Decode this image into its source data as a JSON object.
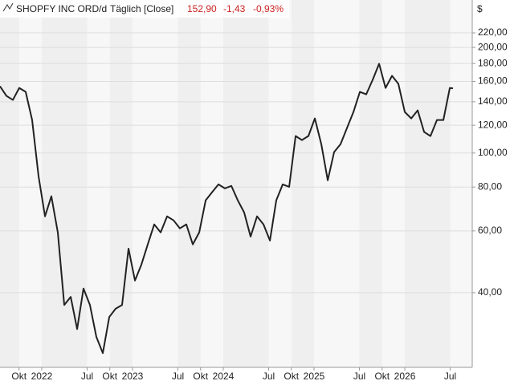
{
  "chart_data": {
    "type": "line",
    "title": "SHOPFY INC ORD/d",
    "subtitle": "Täglich [Close]",
    "last": "152,90",
    "change": "-1,43",
    "change_percent": "-0,93%",
    "y_label": "$",
    "log_y": true,
    "x": [
      2021.54,
      2021.611,
      2021.682,
      2021.752,
      2021.823,
      2021.894,
      2021.965,
      2022.036,
      2022.106,
      2022.177,
      2022.248,
      2022.319,
      2022.39,
      2022.46,
      2022.531,
      2022.602,
      2022.673,
      2022.744,
      2022.814,
      2022.885,
      2022.956,
      2023.027,
      2023.098,
      2023.168,
      2023.239,
      2023.31,
      2023.381,
      2023.452,
      2023.522,
      2023.593,
      2023.664,
      2023.735,
      2023.806,
      2023.876,
      2023.947,
      2024.018,
      2024.089,
      2024.16,
      2024.23,
      2024.301,
      2024.372,
      2024.443,
      2024.514,
      2024.584,
      2024.655,
      2024.726,
      2024.797,
      2024.867,
      2024.938,
      2025.009,
      2025.08,
      2025.151,
      2025.221,
      2025.292,
      2025.363,
      2025.434,
      2025.505,
      2025.575,
      2025.646,
      2025.717,
      2025.788,
      2025.859,
      2025.929,
      2026.0,
      2026.071,
      2026.142,
      2026.213,
      2026.283,
      2026.354,
      2026.425,
      2026.496,
      2026.531
    ],
    "series": [
      {
        "name": "SHOPFY INC ORD",
        "color": "#222222",
        "values": [
          155.0,
          145.5,
          141.7,
          153.3,
          149.4,
          124.2,
          85.8,
          66.0,
          75.3,
          59.4,
          36.9,
          38.9,
          31.5,
          41.1,
          36.9,
          29.9,
          26.9,
          34.1,
          36.0,
          36.9,
          53.4,
          43.3,
          48.1,
          54.9,
          62.6,
          59.4,
          66.0,
          64.3,
          61.0,
          62.6,
          54.9,
          59.4,
          73.3,
          77.3,
          81.4,
          79.3,
          80.6,
          73.3,
          67.7,
          57.8,
          66.0,
          62.6,
          56.3,
          73.3,
          81.4,
          80.1,
          111.8,
          108.9,
          111.8,
          125.5,
          106.0,
          83.6,
          100.6,
          106.0,
          117.8,
          130.9,
          149.4,
          147.0,
          161.7,
          179.6,
          153.3,
          166.0,
          157.5,
          130.9,
          125.5,
          132.3,
          114.8,
          111.8,
          124.2,
          124.2,
          153.3,
          152.9
        ]
      }
    ],
    "xlim": [
      2021.54,
      2026.743
    ],
    "xticks": [
      {
        "value": 2021.75,
        "label": "Okt"
      },
      2022,
      {
        "value": 2022.5,
        "label": "Jul"
      },
      {
        "value": 2022.75,
        "label": "Okt"
      },
      2023,
      {
        "value": 2023.5,
        "label": "Jul"
      },
      {
        "value": 2023.75,
        "label": "Okt"
      },
      2024,
      {
        "value": 2024.5,
        "label": "Jul"
      },
      {
        "value": 2024.75,
        "label": "Okt"
      },
      2025,
      {
        "value": 2025.5,
        "label": "Jul"
      },
      {
        "value": 2025.75,
        "label": "Okt"
      },
      2026,
      {
        "value": 2026.5,
        "label": "Jul"
      }
    ],
    "ylim": [
      24.5,
      273
    ],
    "yticks": [
      {
        "value": 40,
        "label": "40,00"
      },
      {
        "value": 60,
        "label": "60,00"
      },
      {
        "value": 80,
        "label": "80,00"
      },
      {
        "value": 100,
        "label": "100,00"
      },
      {
        "value": 120,
        "label": "120,00"
      },
      {
        "value": 140,
        "label": "140,00"
      },
      {
        "value": 160,
        "label": "160,00"
      },
      {
        "value": 180,
        "label": "180,00"
      },
      {
        "value": 200,
        "label": "200,00"
      },
      {
        "value": 220,
        "label": "220,00"
      }
    ],
    "grid": true
  }
}
